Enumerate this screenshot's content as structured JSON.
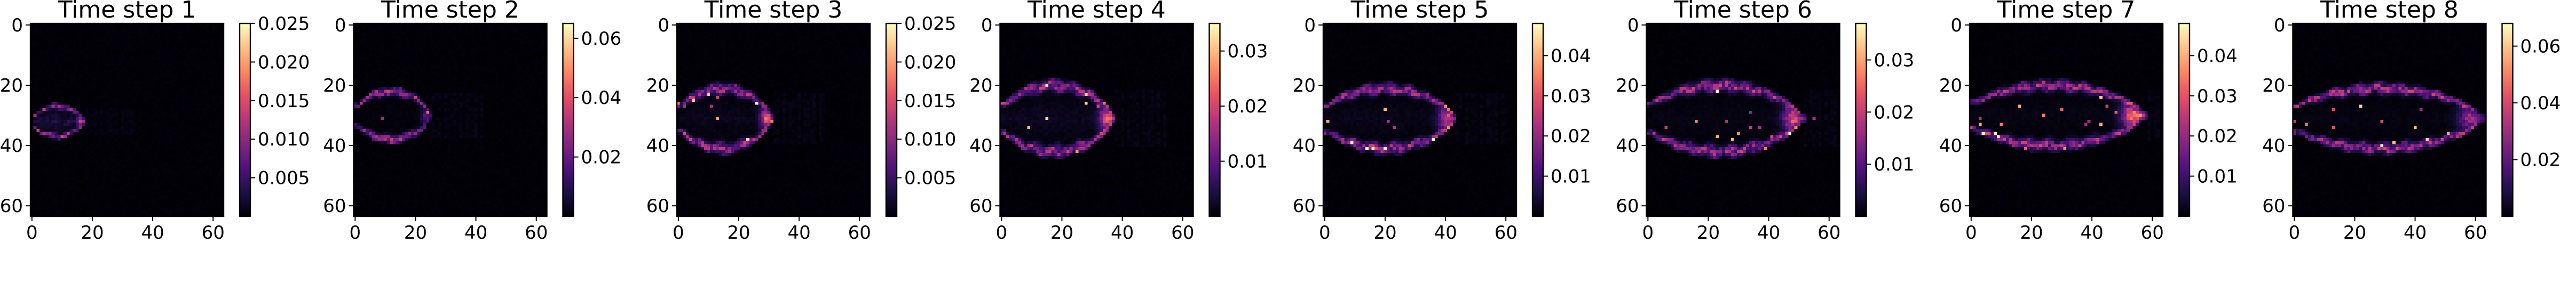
{
  "colors": {
    "colormap": "magma",
    "stops": [
      "#000004",
      "#1c1044",
      "#4f127b",
      "#812581",
      "#b5367a",
      "#e55064",
      "#fb8761",
      "#fec287",
      "#fcfdbf"
    ]
  },
  "chart_data": [
    {
      "type": "heatmap",
      "title": "Time step 1",
      "grid_size": 64,
      "x_ticks": [
        0,
        20,
        40,
        60
      ],
      "y_ticks": [
        0,
        20,
        40,
        60
      ],
      "colorbar": {
        "min": 0,
        "max": 0.025,
        "ticks": [
          0.005,
          0.01,
          0.015,
          0.02,
          0.025
        ],
        "tick_labels": [
          "0.005",
          "0.010",
          "0.015",
          "0.020",
          "0.025"
        ]
      },
      "structure": {
        "length": 16,
        "center_y": 32,
        "half_height": 5,
        "front_peak": 0.55,
        "interior": 0.45,
        "speckle": 0.15
      }
    },
    {
      "type": "heatmap",
      "title": "Time step 2",
      "grid_size": 64,
      "x_ticks": [
        0,
        20,
        40,
        60
      ],
      "y_ticks": [
        0,
        20,
        40,
        60
      ],
      "colorbar": {
        "min": 0,
        "max": 0.065,
        "ticks": [
          0.02,
          0.04,
          0.06
        ],
        "tick_labels": [
          "0.02",
          "0.04",
          "0.06"
        ]
      },
      "structure": {
        "length": 24,
        "center_y": 30,
        "half_height": 8,
        "front_peak": 0.35,
        "interior": 0.05,
        "speckle": 0.08
      }
    },
    {
      "type": "heatmap",
      "title": "Time step 3",
      "grid_size": 64,
      "x_ticks": [
        0,
        20,
        40,
        60
      ],
      "y_ticks": [
        0,
        20,
        40,
        60
      ],
      "colorbar": {
        "min": 0,
        "max": 0.025,
        "ticks": [
          0.005,
          0.01,
          0.015,
          0.02,
          0.025
        ],
        "tick_labels": [
          "0.005",
          "0.010",
          "0.015",
          "0.020",
          "0.025"
        ]
      },
      "structure": {
        "length": 30,
        "center_y": 31,
        "half_height": 10,
        "front_peak": 0.75,
        "interior": 0.15,
        "speckle": 0.3
      }
    },
    {
      "type": "heatmap",
      "title": "Time step 4",
      "grid_size": 64,
      "x_ticks": [
        0,
        20,
        40,
        60
      ],
      "y_ticks": [
        0,
        20,
        40,
        60
      ],
      "colorbar": {
        "min": 0,
        "max": 0.035,
        "ticks": [
          0.01,
          0.02,
          0.03
        ],
        "tick_labels": [
          "0.01",
          "0.02",
          "0.03"
        ]
      },
      "structure": {
        "length": 36,
        "center_y": 31,
        "half_height": 11,
        "front_peak": 0.8,
        "interior": 0.2,
        "speckle": 0.3
      }
    },
    {
      "type": "heatmap",
      "title": "Time step 5",
      "grid_size": 64,
      "x_ticks": [
        0,
        20,
        40,
        60
      ],
      "y_ticks": [
        0,
        20,
        40,
        60
      ],
      "colorbar": {
        "min": 0,
        "max": 0.048,
        "ticks": [
          0.01,
          0.02,
          0.03,
          0.04
        ],
        "tick_labels": [
          "0.01",
          "0.02",
          "0.03",
          "0.04"
        ]
      },
      "structure": {
        "length": 42,
        "center_y": 31,
        "half_height": 10,
        "front_peak": 0.7,
        "interior": 0.15,
        "speckle": 0.25
      }
    },
    {
      "type": "heatmap",
      "title": "Time step 6",
      "grid_size": 64,
      "x_ticks": [
        0,
        20,
        40,
        60
      ],
      "y_ticks": [
        0,
        20,
        40,
        60
      ],
      "colorbar": {
        "min": 0,
        "max": 0.037,
        "ticks": [
          0.01,
          0.02,
          0.03
        ],
        "tick_labels": [
          "0.01",
          "0.02",
          "0.03"
        ]
      },
      "structure": {
        "length": 50,
        "center_y": 31,
        "half_height": 11,
        "front_peak": 0.75,
        "interior": 0.1,
        "speckle": 0.3
      }
    },
    {
      "type": "heatmap",
      "title": "Time step 7",
      "grid_size": 64,
      "x_ticks": [
        0,
        20,
        40,
        60
      ],
      "y_ticks": [
        0,
        20,
        40,
        60
      ],
      "colorbar": {
        "min": 0,
        "max": 0.048,
        "ticks": [
          0.01,
          0.02,
          0.03,
          0.04
        ],
        "tick_labels": [
          "0.01",
          "0.02",
          "0.03",
          "0.04"
        ]
      },
      "structure": {
        "length": 56,
        "center_y": 30,
        "half_height": 10,
        "front_peak": 0.95,
        "interior": 0.1,
        "speckle": 0.3
      }
    },
    {
      "type": "heatmap",
      "title": "Time step 8",
      "grid_size": 64,
      "x_ticks": [
        0,
        20,
        40,
        60
      ],
      "y_ticks": [
        0,
        20,
        40,
        60
      ],
      "colorbar": {
        "min": 0,
        "max": 0.068,
        "ticks": [
          0.02,
          0.04,
          0.06
        ],
        "tick_labels": [
          "0.02",
          "0.04",
          "0.06"
        ]
      },
      "structure": {
        "length": 61,
        "center_y": 31,
        "half_height": 10,
        "front_peak": 0.55,
        "interior": 0.08,
        "speckle": 0.2
      }
    }
  ]
}
